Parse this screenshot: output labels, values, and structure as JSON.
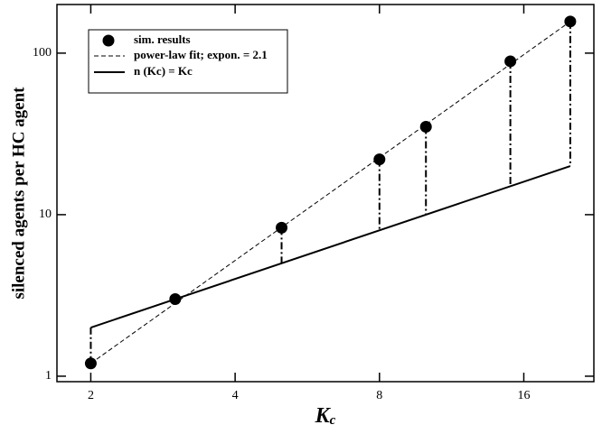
{
  "chart_data": {
    "type": "line",
    "ylabel": "silenced agents per HC agent",
    "xlabel": {
      "main": "K",
      "sub": "c"
    },
    "xscale": "log",
    "yscale": "log",
    "xlim": [
      1.7,
      22.4
    ],
    "ylim": [
      0.925,
      200
    ],
    "xticks": [
      2,
      4,
      8,
      16
    ],
    "yticks": [
      1,
      10,
      100
    ],
    "legend": "upper left",
    "series": [
      {
        "name": "sim. results",
        "style": "marker",
        "color": "#000000",
        "x": [
          2,
          3,
          5,
          8,
          10,
          15,
          20
        ],
        "values": [
          1.2,
          3,
          8.3,
          22,
          35,
          89,
          157
        ]
      },
      {
        "name": "power-law fit; expon. = 2.1",
        "style": "dashed",
        "color": "#000000",
        "x": [
          2,
          20
        ],
        "values": [
          1.2,
          157
        ]
      },
      {
        "name": "n (Kc) = Kc",
        "style": "solid",
        "color": "#000000",
        "x": [
          2,
          20
        ],
        "values": [
          2,
          20
        ]
      }
    ]
  }
}
